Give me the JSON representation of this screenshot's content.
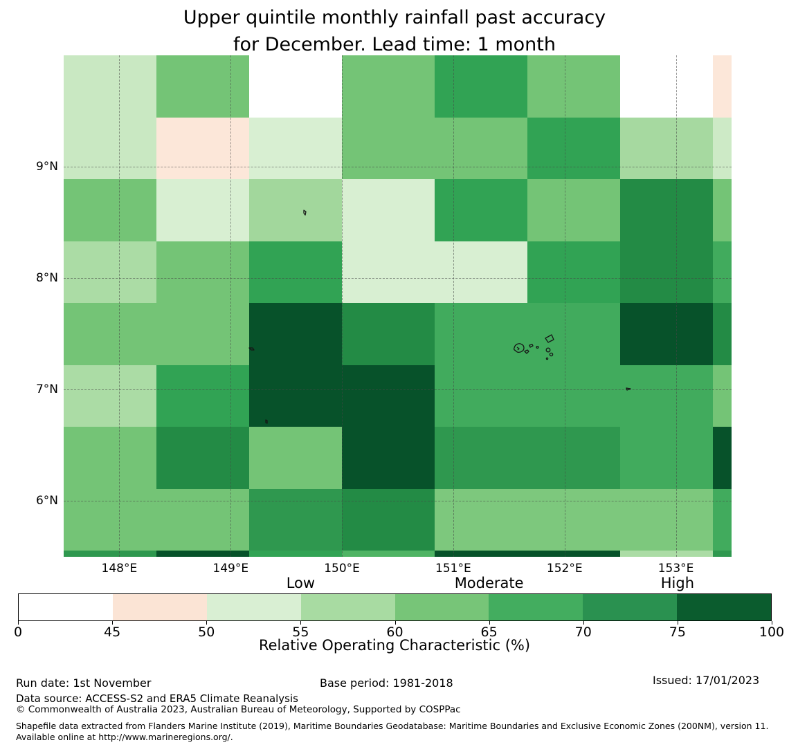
{
  "title": {
    "line1": "Upper quintile monthly rainfall past accuracy",
    "line2": "for December. Lead time: 1 month"
  },
  "map": {
    "lon_edges": [
      147.5,
      148.333,
      149.167,
      150.0,
      150.833,
      151.667,
      152.5,
      153.333,
      153.5
    ],
    "lat_edges": [
      10.0,
      9.444,
      8.889,
      8.333,
      7.778,
      7.222,
      6.667,
      6.111,
      5.556,
      5.5
    ],
    "x_ticks": [
      {
        "label": "148°E",
        "lon": 148
      },
      {
        "label": "149°E",
        "lon": 149
      },
      {
        "label": "150°E",
        "lon": 150
      },
      {
        "label": "151°E",
        "lon": 151
      },
      {
        "label": "152°E",
        "lon": 152
      },
      {
        "label": "153°E",
        "lon": 153
      }
    ],
    "y_ticks": [
      {
        "label": "9°N",
        "lat": 9
      },
      {
        "label": "8°N",
        "lat": 8
      },
      {
        "label": "7°N",
        "lat": 7
      },
      {
        "label": "6°N",
        "lat": 6
      }
    ],
    "palette": {
      "white": "#ffffff",
      "pink": "#fce7d9",
      "g50": "#d8efd2",
      "g52": "#cdeac6",
      "g56": "#c9e8c2",
      "g58": "#abdca5",
      "g59": "#a6d9a0",
      "g60": "#a2d79c",
      "g63": "#7dc87d",
      "g64": "#74c476",
      "g66": "#4fb464",
      "g68": "#41ab5d",
      "g70": "#31a354",
      "g71": "#2f984f",
      "g73": "#238b45",
      "g83": "#07522a"
    },
    "cells": [
      [
        "g56",
        "g64",
        "white",
        "g64",
        "g70",
        "g64",
        "white",
        "pink"
      ],
      [
        "g56",
        "pink",
        "g50",
        "g64",
        "g64",
        "g70",
        "g59",
        "g52"
      ],
      [
        "g64",
        "g50",
        "g60",
        "g50",
        "g70",
        "g64",
        "g73",
        "g64"
      ],
      [
        "g58",
        "g64",
        "g70",
        "g50",
        "g50",
        "g70",
        "g73",
        "g68"
      ],
      [
        "g64",
        "g64",
        "g83",
        "g73",
        "g68",
        "g68",
        "g83",
        "g73"
      ],
      [
        "g58",
        "g70",
        "g83",
        "g83",
        "g68",
        "g68",
        "g68",
        "g64"
      ],
      [
        "g64",
        "g73",
        "g64",
        "g83",
        "g71",
        "g71",
        "g68",
        "g83"
      ],
      [
        "g64",
        "g64",
        "g71",
        "g73",
        "g63",
        "g63",
        "g63",
        "g68"
      ],
      [
        "g71",
        "g83",
        "g70",
        "g66",
        "g83",
        "g83",
        "g58",
        "g71"
      ]
    ]
  },
  "colorbar": {
    "segments": [
      {
        "range": "0-45",
        "color": "#ffffff"
      },
      {
        "range": "45-50",
        "color": "#fbe4d5"
      },
      {
        "range": "50-55",
        "color": "#d9efd3"
      },
      {
        "range": "55-60",
        "color": "#a8dba2"
      },
      {
        "range": "60-65",
        "color": "#77c578"
      },
      {
        "range": "65-70",
        "color": "#43ad5f"
      },
      {
        "range": "70-75",
        "color": "#2a9150"
      },
      {
        "range": "75-100",
        "color": "#0b5c2e"
      }
    ],
    "tick_labels": [
      "0",
      "45",
      "50",
      "55",
      "60",
      "65",
      "70",
      "75",
      "100"
    ],
    "region_labels": [
      {
        "label": "Low",
        "tick_index": 3
      },
      {
        "label": "Moderate",
        "tick_index": 5
      },
      {
        "label": "High",
        "tick_index": 7
      }
    ],
    "xlabel": "Relative Operating Characteristic (%)"
  },
  "footer": {
    "run_date": "Run date: 1st November",
    "base_period": "Base period: 1981-2018",
    "issued": "Issued: 17/01/2023",
    "data_source": "Data source: ACCESS-S2 and ERA5 Climate Reanalysis",
    "copyright": "© Commonwealth of Australia 2023, Australian Bureau of Meteorology, Supported by COSPPac",
    "shapefile_note": "Shapefile data extracted from Flanders Marine Institute (2019), Maritime Boundaries Geodatabase: Maritime Boundaries and Exclusive Economic Zones (200NM), version 11. Available online at http://www.marineregions.org/."
  },
  "chart_data": {
    "type": "heatmap",
    "title": "Upper quintile monthly rainfall past accuracy for December. Lead time: 1 month",
    "x_label_units": "longitude (°E)",
    "y_label_units": "latitude (°N)",
    "x_cell_centers": [
      147.92,
      148.75,
      149.58,
      150.42,
      151.25,
      152.08,
      152.92,
      153.42
    ],
    "y_cell_centers": [
      9.72,
      9.17,
      8.61,
      8.06,
      7.5,
      6.94,
      6.39,
      5.83,
      5.53
    ],
    "xlim": [
      147.5,
      153.5
    ],
    "ylim": [
      5.5,
      10.0
    ],
    "x_tick_values": [
      148,
      149,
      150,
      151,
      152,
      153
    ],
    "y_tick_values": [
      9,
      8,
      7,
      6
    ],
    "grid": "dashed",
    "values_units": "Relative Operating Characteristic (%)",
    "values": [
      [
        56,
        64,
        42,
        64,
        70,
        64,
        42,
        47
      ],
      [
        56,
        47,
        52,
        64,
        64,
        70,
        59,
        53
      ],
      [
        64,
        52,
        60,
        52,
        70,
        64,
        73,
        64
      ],
      [
        58,
        64,
        70,
        52,
        52,
        70,
        73,
        68
      ],
      [
        64,
        64,
        83,
        73,
        68,
        68,
        83,
        73
      ],
      [
        58,
        70,
        83,
        83,
        68,
        68,
        68,
        64
      ],
      [
        64,
        73,
        64,
        83,
        71,
        71,
        68,
        83
      ],
      [
        64,
        64,
        71,
        73,
        63,
        63,
        63,
        68
      ],
      [
        71,
        83,
        70,
        66,
        83,
        83,
        58,
        71
      ]
    ],
    "colorbar_bounds": [
      0,
      45,
      50,
      55,
      60,
      65,
      70,
      75,
      100
    ],
    "colorbar_region_labels": {
      "Low": 55,
      "Moderate": 65,
      "High": 75
    },
    "legend_position": "bottom"
  }
}
